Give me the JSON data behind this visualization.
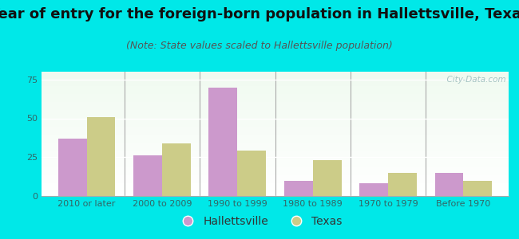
{
  "title": "Year of entry for the foreign-born population in Hallettsville, Texas",
  "subtitle": "(Note: State values scaled to Hallettsville population)",
  "categories": [
    "2010 or later",
    "2000 to 2009",
    "1990 to 1999",
    "1980 to 1989",
    "1970 to 1979",
    "Before 1970"
  ],
  "hallettsville_values": [
    37,
    26,
    70,
    10,
    8,
    15
  ],
  "texas_values": [
    51,
    34,
    29,
    23,
    15,
    10
  ],
  "hallettsville_color": "#cc99cc",
  "texas_color": "#cccc88",
  "background_outer": "#00e8e8",
  "ylim": [
    0,
    80
  ],
  "yticks": [
    0,
    25,
    50,
    75
  ],
  "bar_width": 0.38,
  "title_fontsize": 13,
  "subtitle_fontsize": 9,
  "tick_fontsize": 8,
  "legend_fontsize": 10,
  "watermark": "  City-Data.com"
}
